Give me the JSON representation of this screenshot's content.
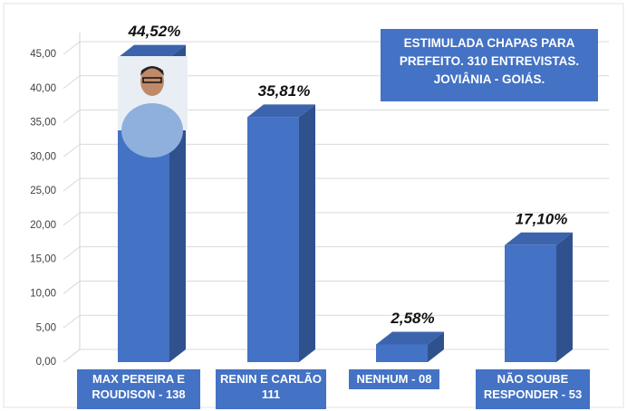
{
  "chart_data": {
    "type": "bar3d",
    "title_lines": [
      "ESTIMULADA CHAPAS PARA",
      "PREFEITO. 310 ENTREVISTAS.",
      "JOVIÂNIA - GOIÁS."
    ],
    "categories": [
      "MAX PEREIRA E ROUDISON - 138",
      "RENIN E CARLÃO 111",
      "NENHUM - 08",
      "NÃO SOUBE RESPONDER - 53"
    ],
    "values": [
      44.52,
      35.81,
      2.58,
      17.1
    ],
    "value_labels": [
      "44,52%",
      "35,81%",
      "2,58%",
      "17,10%"
    ],
    "color": "#4472c4",
    "ylim": [
      0,
      45
    ],
    "yticks": [
      {
        "value": 0,
        "label": "0,00"
      },
      {
        "value": 5,
        "label": "5,00"
      },
      {
        "value": 10,
        "label": "10,00"
      },
      {
        "value": 15,
        "label": "15,00"
      },
      {
        "value": 20,
        "label": "20,00"
      },
      {
        "value": 25,
        "label": "25,00"
      },
      {
        "value": 30,
        "label": "30,00"
      },
      {
        "value": 35,
        "label": "35,00"
      },
      {
        "value": 40,
        "label": "40,00"
      },
      {
        "value": 45,
        "label": "45,00"
      }
    ],
    "grid": true
  }
}
